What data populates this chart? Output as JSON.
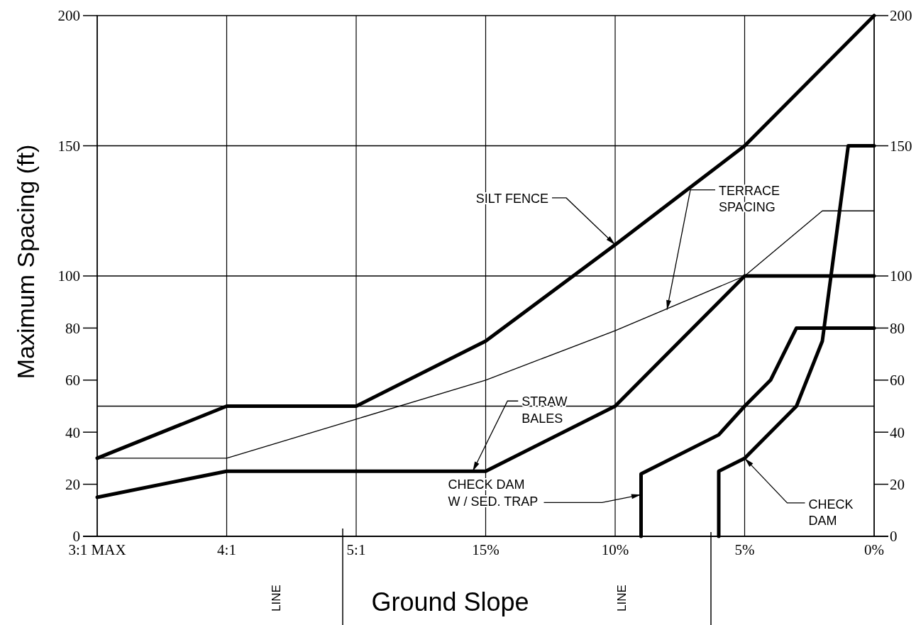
{
  "chart_data": {
    "type": "line",
    "xlabel": "Ground Slope",
    "ylabel": "Maximum Spacing (ft)",
    "xlim": [
      30,
      0
    ],
    "xticks": [
      {
        "value": 30,
        "label": "3:1 MAX"
      },
      {
        "value": 25,
        "label": "4:1"
      },
      {
        "value": 20,
        "label": "5:1"
      },
      {
        "value": 15,
        "label": "15%"
      },
      {
        "value": 10,
        "label": "10%"
      },
      {
        "value": 5,
        "label": "5%"
      },
      {
        "value": 0,
        "label": "0%"
      }
    ],
    "ylim": [
      0,
      200
    ],
    "yticks": [
      0,
      20,
      40,
      60,
      80,
      100,
      150,
      200
    ],
    "y2lim": [
      0,
      200
    ],
    "y2ticks": [
      0,
      20,
      40,
      60,
      80,
      100,
      150,
      200
    ],
    "grid": "x",
    "marker": "none",
    "line_style": "solid",
    "series": [
      {
        "color": "#000000",
        "x": [
          30,
          25,
          20,
          15,
          10,
          5,
          0
        ],
        "values": [
          30,
          50,
          50,
          75,
          112,
          150,
          200
        ]
      },
      {
        "color": "#000000",
        "x": [
          30,
          25,
          20,
          15,
          10,
          5,
          2,
          0
        ],
        "values": [
          30,
          30,
          45,
          60,
          79,
          100,
          125,
          125
        ]
      },
      {
        "color": "#000000",
        "x": [
          30,
          25,
          15,
          10,
          5,
          0
        ],
        "values": [
          15,
          25,
          25,
          50,
          100,
          100
        ]
      },
      {
        "color": "#000000",
        "x": [
          9,
          9,
          6,
          5,
          4,
          3,
          0
        ],
        "values": [
          0,
          24,
          39,
          50,
          60,
          80,
          80
        ]
      },
      {
        "color": "#000000",
        "x": [
          6,
          6,
          5,
          3,
          2,
          1,
          0
        ],
        "values": [
          0,
          25,
          30,
          50,
          75,
          150,
          150
        ]
      }
    ],
    "ref_lines": [
      {
        "axis": "y",
        "value": 50,
        "color": "#000000"
      },
      {
        "axis": "y",
        "value": 100,
        "color": "#000000"
      },
      {
        "axis": "y",
        "value": 150,
        "color": "#000000"
      }
    ],
    "annotations": [
      {
        "text": "SILT FENCE",
        "x": 10,
        "y": 112
      },
      {
        "text": "TERRACE\nSPACING",
        "x": 8,
        "y": 87
      },
      {
        "text": "STRAW\nBALES",
        "x": 15.5,
        "y": 25
      },
      {
        "text": "CHECK DAM\nW / SED. TRAP",
        "x": 9,
        "y": 16
      },
      {
        "text": "CHECK\nDAM",
        "x": 5,
        "y": 30
      },
      "LINE",
      "LINE"
    ]
  }
}
